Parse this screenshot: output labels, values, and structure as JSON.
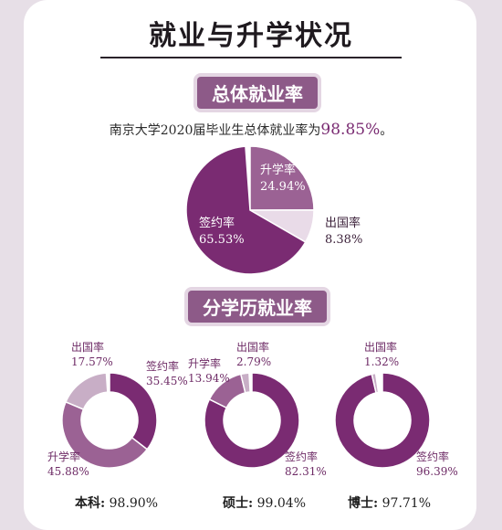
{
  "header": {
    "title": "就业与升学状况"
  },
  "overall": {
    "pill": "总体就业率",
    "sentence_prefix": "南京大学2020届毕业生总体就业率为",
    "sentence_value": "98.85%",
    "sentence_suffix": "。"
  },
  "by_degree": {
    "pill": "分学历就业率"
  },
  "colors": {
    "sign": "#7a2b72",
    "further": "#9b6294",
    "abroad": "#e9dbe8",
    "abroad_donut": "#c8aec6"
  },
  "chart_data": [
    {
      "type": "pie",
      "categories": [
        "签约率",
        "升学率",
        "出国率"
      ],
      "values": [
        65.53,
        24.94,
        8.38
      ],
      "labels": [
        "65.53%",
        "24.94%",
        "8.38%"
      ]
    },
    {
      "type": "pie",
      "categories": [
        "签约率",
        "升学率",
        "出国率"
      ],
      "values": [
        35.45,
        45.88,
        17.57
      ],
      "labels": [
        "35.45%",
        "45.88%",
        "17.57%"
      ],
      "caption_name": "本科:",
      "caption_value": "98.90%"
    },
    {
      "type": "pie",
      "categories": [
        "签约率",
        "升学率",
        "出国率"
      ],
      "values": [
        82.31,
        13.94,
        2.79
      ],
      "labels": [
        "82.31%",
        "13.94%",
        "2.79%"
      ],
      "caption_name": "硕士:",
      "caption_value": "99.04%"
    },
    {
      "type": "pie",
      "categories": [
        "签约率",
        "出国率"
      ],
      "values": [
        96.39,
        1.32
      ],
      "labels": [
        "96.39%",
        "1.32%"
      ],
      "caption_name": "博士:",
      "caption_value": "97.71%"
    }
  ]
}
